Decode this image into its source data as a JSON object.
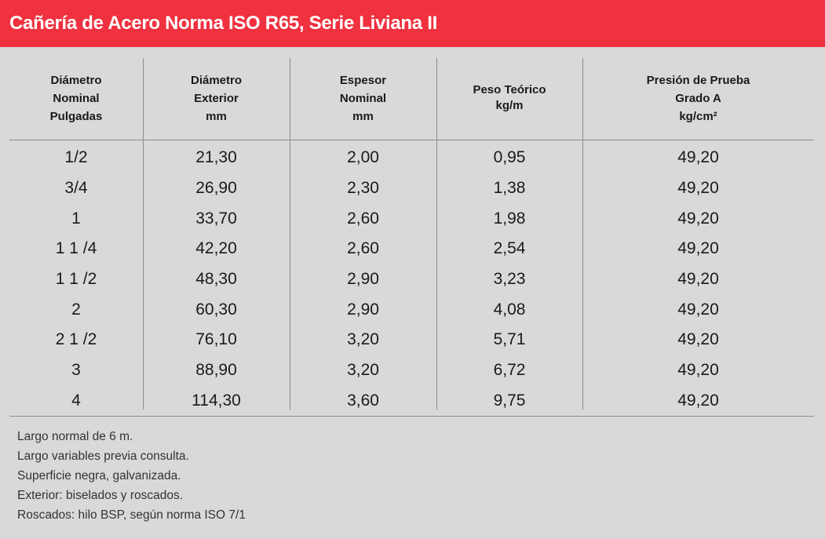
{
  "title": "Cañería de Acero Norma ISO R65, Serie Liviana II",
  "colors": {
    "title_bar": "#f0313f",
    "background": "#d9d9d9"
  },
  "headers": [
    [
      "Diámetro",
      "Nominal",
      "Pulgadas"
    ],
    [
      "Diámetro",
      "Exterior",
      "mm"
    ],
    [
      "Espesor",
      "Nominal",
      "mm"
    ],
    [
      "Peso Teórico",
      "kg/m"
    ],
    [
      "Presión de Prueba",
      "Grado A",
      "kg/cm²"
    ]
  ],
  "rows": [
    [
      "1/2",
      "21,30",
      "2,00",
      "0,95",
      "49,20"
    ],
    [
      "3/4",
      "26,90",
      "2,30",
      "1,38",
      "49,20"
    ],
    [
      "1",
      "33,70",
      "2,60",
      "1,98",
      "49,20"
    ],
    [
      "1 1 /4",
      "42,20",
      "2,60",
      "2,54",
      "49,20"
    ],
    [
      "1 1 /2",
      "48,30",
      "2,90",
      "3,23",
      "49,20"
    ],
    [
      "2",
      "60,30",
      "2,90",
      "4,08",
      "49,20"
    ],
    [
      "2 1 /2",
      "76,10",
      "3,20",
      "5,71",
      "49,20"
    ],
    [
      "3",
      "88,90",
      "3,20",
      "6,72",
      "49,20"
    ],
    [
      "4",
      "114,30",
      "3,60",
      "9,75",
      "49,20"
    ]
  ],
  "notes": [
    "Largo normal de 6 m.",
    "Largo variables previa consulta.",
    "Superficie negra, galvanizada.",
    "Exterior: biselados y roscados.",
    "Roscados: hilo BSP, según norma ISO 7/1"
  ]
}
